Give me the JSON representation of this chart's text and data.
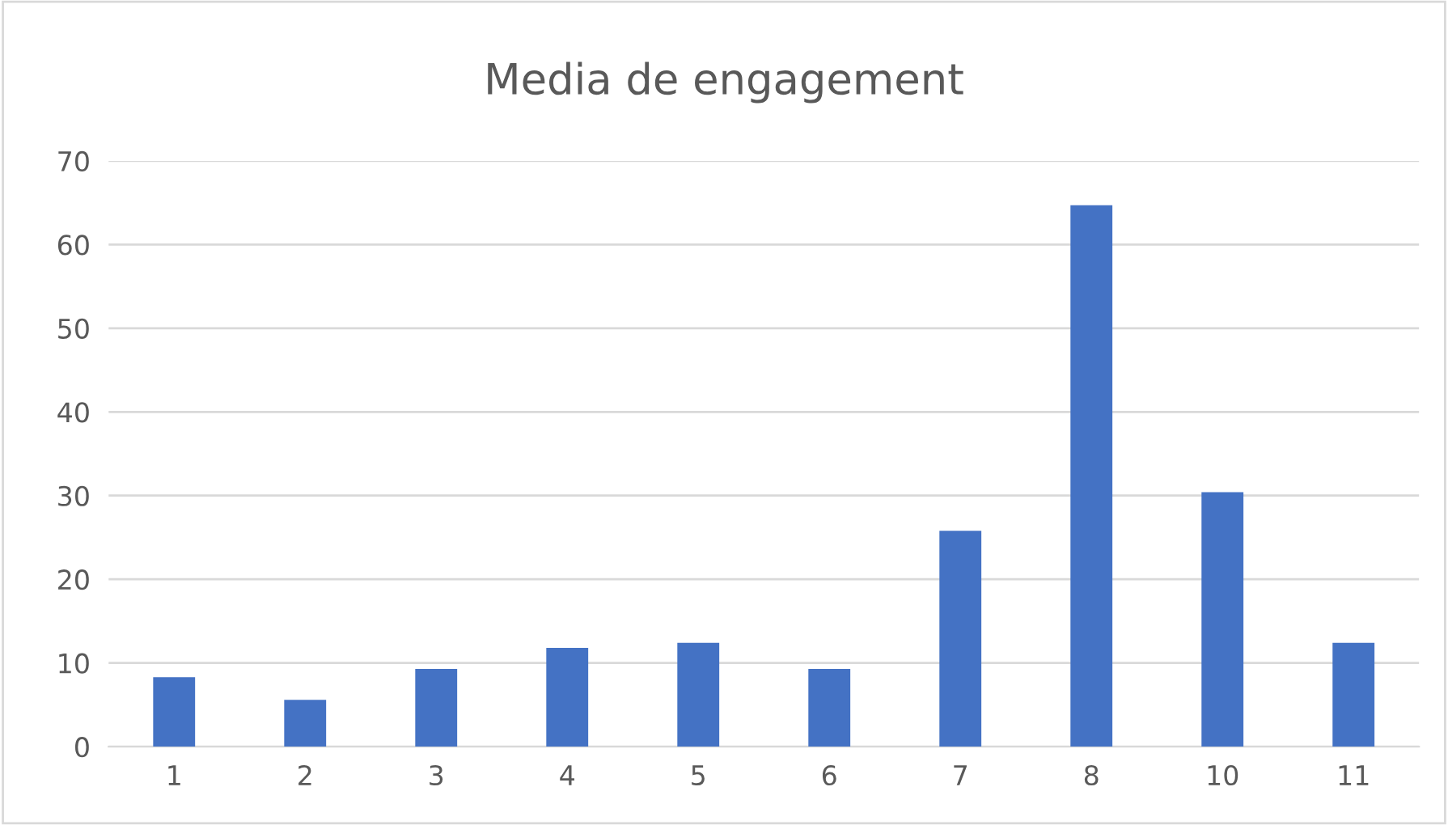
{
  "chart_data": {
    "type": "bar",
    "title": "Media de engagement",
    "categories": [
      "1",
      "2",
      "3",
      "4",
      "5",
      "6",
      "7",
      "8",
      "10",
      "11"
    ],
    "values": [
      8.3,
      5.6,
      9.3,
      11.8,
      12.4,
      9.3,
      25.8,
      64.7,
      30.4,
      12.4
    ],
    "color": "#4472c4",
    "ylim": [
      0,
      70
    ],
    "yticks": [
      0,
      10,
      20,
      30,
      40,
      50,
      60,
      70
    ],
    "grid": "y",
    "legend": false
  }
}
